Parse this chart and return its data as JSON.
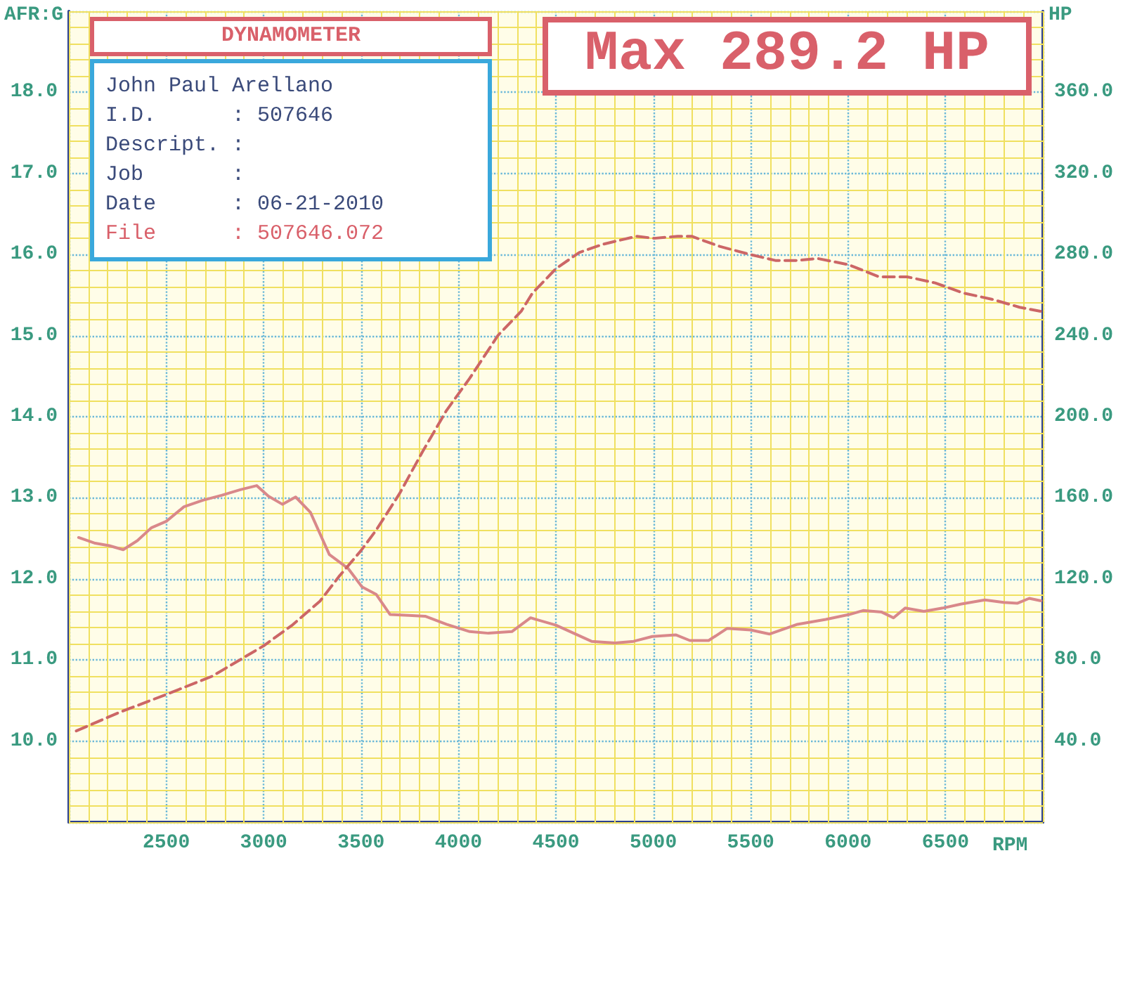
{
  "chart_data": {
    "type": "line",
    "title": "DYNAMOMETER",
    "xlabel": "RPM",
    "ylabel": "AFR:G",
    "y2label": "HP",
    "annotations": [
      "Max 289.2 HP",
      "John Paul Arellano",
      "I.D.      : 507646",
      "Descript. :",
      "Job       :",
      "Date      : 06-21-2010",
      "File      : 507646.072"
    ],
    "xlim": [
      2000,
      7000
    ],
    "xticks": [
      {
        "value": 2000,
        "label": null
      },
      {
        "value": 2100,
        "label": null
      },
      {
        "value": 2200,
        "label": null
      },
      {
        "value": 2300,
        "label": null
      },
      {
        "value": 2400,
        "label": null
      },
      2500,
      {
        "value": 2600,
        "label": null
      },
      {
        "value": 2700,
        "label": null
      },
      {
        "value": 2800,
        "label": null
      },
      {
        "value": 2900,
        "label": null
      },
      3000,
      {
        "value": 3100,
        "label": null
      },
      {
        "value": 3200,
        "label": null
      },
      {
        "value": 3300,
        "label": null
      },
      {
        "value": 3400,
        "label": null
      },
      3500,
      {
        "value": 3600,
        "label": null
      },
      {
        "value": 3700,
        "label": null
      },
      {
        "value": 3800,
        "label": null
      },
      {
        "value": 3900,
        "label": null
      },
      4000,
      {
        "value": 4100,
        "label": null
      },
      {
        "value": 4200,
        "label": null
      },
      {
        "value": 4300,
        "label": null
      },
      {
        "value": 4400,
        "label": null
      },
      4500,
      {
        "value": 4600,
        "label": null
      },
      {
        "value": 4700,
        "label": null
      },
      {
        "value": 4800,
        "label": null
      },
      {
        "value": 4900,
        "label": null
      },
      5000,
      {
        "value": 5100,
        "label": null
      },
      {
        "value": 5200,
        "label": null
      },
      {
        "value": 5300,
        "label": null
      },
      {
        "value": 5400,
        "label": null
      },
      5500,
      {
        "value": 5600,
        "label": null
      },
      {
        "value": 5700,
        "label": null
      },
      {
        "value": 5800,
        "label": null
      },
      {
        "value": 5900,
        "label": null
      },
      6000,
      {
        "value": 6100,
        "label": null
      },
      {
        "value": 6200,
        "label": null
      },
      {
        "value": 6300,
        "label": null
      },
      {
        "value": 6400,
        "label": null
      },
      6500,
      {
        "value": 6600,
        "label": null
      },
      {
        "value": 6700,
        "label": null
      },
      {
        "value": 6800,
        "label": null
      },
      {
        "value": 6900,
        "label": null
      },
      {
        "value": 7000,
        "label": null
      }
    ],
    "ylim": [
      9,
      19
    ],
    "yticks": [
      {
        "value": 9,
        "label": null
      },
      {
        "value": 9.2,
        "label": null
      },
      {
        "value": 9.4,
        "label": null
      },
      {
        "value": 9.6,
        "label": null
      },
      {
        "value": 9.8,
        "label": null
      },
      {
        "value": 10,
        "label": "10.0"
      },
      {
        "value": 10.2,
        "label": null
      },
      {
        "value": 10.4,
        "label": null
      },
      {
        "value": 10.6,
        "label": null
      },
      {
        "value": 10.8,
        "label": null
      },
      {
        "value": 11,
        "label": "11.0"
      },
      {
        "value": 11.2,
        "label": null
      },
      {
        "value": 11.4,
        "label": null
      },
      {
        "value": 11.6,
        "label": null
      },
      {
        "value": 11.8,
        "label": null
      },
      {
        "value": 12,
        "label": "12.0"
      },
      {
        "value": 12.2,
        "label": null
      },
      {
        "value": 12.4,
        "label": null
      },
      {
        "value": 12.6,
        "label": null
      },
      {
        "value": 12.8,
        "label": null
      },
      {
        "value": 13,
        "label": "13.0"
      },
      {
        "value": 13.2,
        "label": null
      },
      {
        "value": 13.4,
        "label": null
      },
      {
        "value": 13.6,
        "label": null
      },
      {
        "value": 13.8,
        "label": null
      },
      {
        "value": 14,
        "label": "14.0"
      },
      {
        "value": 14.2,
        "label": null
      },
      {
        "value": 14.4,
        "label": null
      },
      {
        "value": 14.6,
        "label": null
      },
      {
        "value": 14.8,
        "label": null
      },
      {
        "value": 15,
        "label": "15.0"
      },
      {
        "value": 15.2,
        "label": null
      },
      {
        "value": 15.4,
        "label": null
      },
      {
        "value": 15.6,
        "label": null
      },
      {
        "value": 15.8,
        "label": null
      },
      {
        "value": 16,
        "label": "16.0"
      },
      {
        "value": 16.2,
        "label": null
      },
      {
        "value": 16.4,
        "label": null
      },
      {
        "value": 16.6,
        "label": null
      },
      {
        "value": 16.8,
        "label": null
      },
      {
        "value": 17,
        "label": "17.0"
      },
      {
        "value": 17.2,
        "label": null
      },
      {
        "value": 17.4,
        "label": null
      },
      {
        "value": 17.6,
        "label": null
      },
      {
        "value": 17.8,
        "label": null
      },
      {
        "value": 18,
        "label": "18.0"
      },
      {
        "value": 18.2,
        "label": null
      },
      {
        "value": 18.4,
        "label": null
      },
      {
        "value": 18.6,
        "label": null
      },
      {
        "value": 18.8,
        "label": null
      },
      {
        "value": 19,
        "label": null
      }
    ],
    "y2lim": [
      0,
      400
    ],
    "y2ticks": [
      {
        "value": 40,
        "label": "40.0"
      },
      {
        "value": 80,
        "label": "80.0"
      },
      {
        "value": 120,
        "label": "120.0"
      },
      {
        "value": 160,
        "label": "160.0"
      },
      {
        "value": 200,
        "label": "200.0"
      },
      {
        "value": 240,
        "label": "240.0"
      },
      {
        "value": 280,
        "label": "280.0"
      },
      {
        "value": 320,
        "label": "320.0"
      },
      {
        "value": 360,
        "label": "360.0"
      }
    ],
    "grid": true,
    "marker": "none",
    "series": [
      {
        "color": "#d9888a",
        "line_style": "solid",
        "x": [
          2050,
          2135,
          2207,
          2279,
          2351,
          2423,
          2500,
          2591,
          2688,
          2784,
          2880,
          2964,
          3024,
          3096,
          3164,
          3240,
          3337,
          3433,
          3505,
          3577,
          3649,
          3745,
          3829,
          3938,
          4058,
          4154,
          4274,
          4370,
          4500,
          4683,
          4803,
          4899,
          4995,
          5115,
          5188,
          5284,
          5380,
          5500,
          5596,
          5740,
          5885,
          6005,
          6077,
          6173,
          6233,
          6293,
          6389,
          6486,
          6582,
          6702,
          6798,
          6870,
          6930,
          6990
        ],
        "values": [
          12.51,
          12.44,
          12.41,
          12.36,
          12.47,
          12.63,
          12.71,
          12.89,
          12.97,
          13.03,
          13.1,
          13.15,
          13.02,
          12.92,
          13.01,
          12.82,
          12.3,
          12.13,
          11.9,
          11.81,
          11.56,
          11.55,
          11.54,
          11.44,
          11.35,
          11.33,
          11.35,
          11.52,
          11.43,
          11.23,
          11.21,
          11.23,
          11.29,
          11.31,
          11.24,
          11.24,
          11.39,
          11.37,
          11.32,
          11.44,
          11.5,
          11.56,
          11.61,
          11.59,
          11.52,
          11.64,
          11.6,
          11.64,
          11.69,
          11.74,
          11.71,
          11.7,
          11.76,
          11.73
        ]
      },
      {
        "color": "#cc6666",
        "line_style": "dashed",
        "axis": "y2",
        "x": [
          2038,
          2255,
          2500,
          2736,
          3000,
          3144,
          3289,
          3385,
          3500,
          3577,
          3697,
          3817,
          3938,
          4058,
          4202,
          4322,
          4380,
          4500,
          4620,
          4740,
          4913,
          5005,
          5125,
          5197,
          5341,
          5498,
          5630,
          5726,
          5846,
          6002,
          6159,
          6303,
          6447,
          6591,
          6736,
          6880,
          6988
        ],
        "values": [
          45,
          54,
          63,
          72,
          87,
          97,
          109,
          121,
          134,
          144,
          162,
          183,
          203,
          219,
          240,
          252,
          261,
          273,
          281,
          285,
          289,
          288,
          289,
          289,
          284,
          280,
          277,
          277,
          278,
          275,
          269,
          269,
          266,
          261,
          258,
          254,
          252
        ]
      }
    ]
  }
}
